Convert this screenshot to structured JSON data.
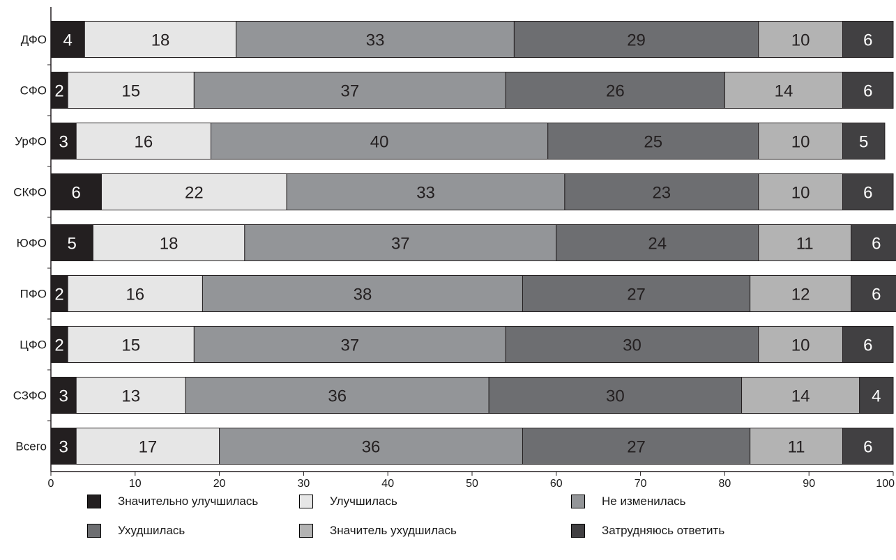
{
  "chart_data": {
    "type": "bar",
    "orientation": "horizontal",
    "stacked": true,
    "categories": [
      "ДФО",
      "СФО",
      "УрФО",
      "СКФО",
      "ЮФО",
      "ПФО",
      "ЦФО",
      "СЗФО",
      "Всего"
    ],
    "series": [
      {
        "name": "Значительно улучшилась",
        "color": "#231f20",
        "text_color": "#ffffff",
        "values": [
          4,
          2,
          3,
          6,
          5,
          2,
          2,
          3,
          3
        ]
      },
      {
        "name": "Улучшилась",
        "color": "#e6e6e6",
        "text_color": "#231f20",
        "values": [
          18,
          15,
          16,
          22,
          18,
          16,
          15,
          13,
          17
        ]
      },
      {
        "name": "Не изменилась",
        "color": "#939598",
        "text_color": "#231f20",
        "values": [
          33,
          37,
          40,
          33,
          37,
          38,
          37,
          36,
          36
        ]
      },
      {
        "name": "Ухудшилась",
        "color": "#6d6e71",
        "text_color": "#231f20",
        "values": [
          29,
          26,
          25,
          23,
          24,
          27,
          30,
          30,
          27
        ]
      },
      {
        "name": "Значитель ухудшилась",
        "color": "#b3b3b3",
        "text_color": "#231f20",
        "values": [
          10,
          14,
          10,
          10,
          11,
          12,
          10,
          14,
          11
        ]
      },
      {
        "name": "Затрудняюсь ответить",
        "color": "#414042",
        "text_color": "#ffffff",
        "values": [
          6,
          6,
          5,
          6,
          6,
          6,
          6,
          4,
          6
        ]
      }
    ],
    "xlim": [
      0,
      100
    ],
    "xticks": [
      0,
      10,
      20,
      30,
      40,
      50,
      60,
      70,
      80,
      90,
      100
    ],
    "grid": false,
    "legend_position": "bottom"
  }
}
